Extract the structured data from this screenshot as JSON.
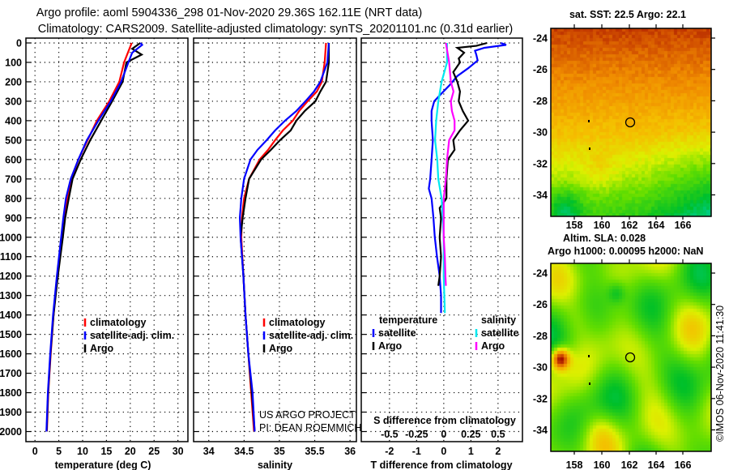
{
  "title": {
    "line1": "Argo profile: aoml 5904336_298 01-Nov-2020 29.36S 162.11E (NRT data)",
    "line2": "Climatology: CARS2009. Satellite-adjusted climatology: synTS_20201101.nc (0.31d earlier)"
  },
  "chart_data": [
    {
      "type": "line",
      "id": "temperature",
      "xlabel": "temperature (deg C)",
      "ylabel": "depth",
      "xlim": [
        -1.9,
        32.1
      ],
      "ylim": [
        -25,
        2052
      ],
      "xticks": [
        "0",
        "5",
        "10",
        "15",
        "20",
        "25",
        "30"
      ],
      "xtick_values": [
        0,
        5,
        10,
        15,
        20,
        25,
        30
      ],
      "yticks": [
        "0",
        "100",
        "200",
        "300",
        "400",
        "500",
        "600",
        "700",
        "800",
        "900",
        "1000",
        "1100",
        "1200",
        "1300",
        "1400",
        "1500",
        "1600",
        "1700",
        "1800",
        "1900",
        "2000"
      ],
      "ytick_values": [
        0,
        100,
        200,
        300,
        400,
        500,
        600,
        700,
        800,
        900,
        1000,
        1100,
        1200,
        1300,
        1400,
        1500,
        1600,
        1700,
        1800,
        1900,
        2000
      ],
      "grid": true,
      "legend": "bottom-center",
      "series": [
        {
          "name": "climatology",
          "color": "#ff0000",
          "depth": [
            0,
            100,
            200,
            300,
            400,
            500,
            600,
            700,
            800,
            900,
            1000,
            1200,
            1400,
            1600,
            1800,
            2000
          ],
          "values": [
            20.3,
            18.7,
            17.7,
            15.6,
            13.0,
            11.05,
            9.1,
            7.65,
            6.8,
            6.25,
            5.7,
            4.7,
            3.9,
            3.3,
            2.8,
            2.5
          ]
        },
        {
          "name": "Argo",
          "color": "#000000",
          "depth": [
            0,
            30,
            60,
            100,
            200,
            300,
            400,
            500,
            600,
            700,
            800,
            900,
            1000,
            1200,
            1400,
            1600,
            1800,
            2000
          ],
          "values": [
            22.1,
            20.4,
            22.4,
            19.2,
            18.4,
            16.2,
            13.9,
            11.6,
            9.6,
            7.9,
            7.1,
            6.35,
            5.85,
            4.8,
            3.9,
            3.25,
            2.75,
            2.45
          ]
        },
        {
          "name": "satellite-adj. clim.",
          "color": "#0000ff",
          "depth": [
            0,
            10,
            50,
            100,
            200,
            300,
            400,
            500,
            600,
            700,
            800,
            900,
            1000,
            1200,
            1400,
            1600,
            1800,
            2000
          ],
          "values": [
            22.1,
            22.5,
            20.4,
            19.6,
            18.1,
            15.9,
            13.3,
            10.9,
            9.1,
            7.5,
            6.5,
            5.95,
            5.5,
            4.6,
            3.8,
            3.2,
            2.7,
            2.4
          ]
        }
      ],
      "legend_order": [
        0,
        2,
        1
      ]
    },
    {
      "type": "line",
      "id": "salinity",
      "xlabel": "salinity",
      "ylabel": "depth",
      "xlim": [
        33.785,
        36.09
      ],
      "ylim": [
        -25,
        2052
      ],
      "xticks": [
        "34",
        "34.5",
        "35",
        "35.5",
        "36"
      ],
      "xtick_values": [
        34,
        34.5,
        35,
        35.5,
        36
      ],
      "grid": true,
      "legend": "bottom-center",
      "series": [
        {
          "name": "climatology",
          "color": "#ff0000",
          "depth": [
            0,
            100,
            200,
            250,
            300,
            350,
            400,
            450,
            500,
            550,
            600,
            700,
            800,
            900,
            1000,
            1200,
            1400,
            1600,
            1800,
            2000
          ],
          "values": [
            35.66,
            35.64,
            35.6,
            35.53,
            35.4,
            35.28,
            35.19,
            35.05,
            34.94,
            34.84,
            34.72,
            34.57,
            34.5,
            34.47,
            34.46,
            34.49,
            34.52,
            34.56,
            34.6,
            34.64
          ]
        },
        {
          "name": "Argo",
          "color": "#000000",
          "depth": [
            0,
            100,
            200,
            250,
            300,
            350,
            400,
            450,
            500,
            550,
            600,
            700,
            800,
            900,
            1000,
            1200,
            1400,
            1600,
            1800,
            2000
          ],
          "values": [
            35.7,
            35.7,
            35.66,
            35.58,
            35.51,
            35.36,
            35.24,
            35.16,
            35.01,
            34.88,
            34.74,
            34.57,
            34.52,
            34.48,
            34.45,
            34.49,
            34.52,
            34.56,
            34.61,
            34.65
          ]
        },
        {
          "name": "satellite-adj. clim.",
          "color": "#0000ff",
          "depth": [
            0,
            100,
            200,
            250,
            300,
            350,
            400,
            450,
            500,
            550,
            600,
            700,
            800,
            900,
            1000,
            1200,
            1400,
            1600,
            1800,
            2000
          ],
          "values": [
            35.7,
            35.68,
            35.58,
            35.49,
            35.37,
            35.24,
            35.08,
            34.94,
            34.82,
            34.69,
            34.59,
            34.5,
            34.46,
            34.44,
            34.45,
            34.49,
            34.52,
            34.56,
            34.62,
            34.65
          ]
        }
      ],
      "legend_order": [
        0,
        2,
        1
      ]
    },
    {
      "type": "line",
      "id": "difference",
      "xlabel": "T difference from climatology",
      "x2label": "S difference from climatology",
      "xlim": [
        -3.04,
        2.9
      ],
      "x2_per_x": 0.25,
      "ylim": [
        -25,
        2052
      ],
      "xticks": [
        "-2",
        "-1",
        "0",
        "1",
        "2"
      ],
      "xtick_values": [
        -2,
        -1,
        0,
        1,
        2
      ],
      "x2ticks": [
        "-0.5",
        "-0.25",
        "0",
        "0.25",
        "0.5"
      ],
      "x2tick_values": [
        -0.5,
        -0.25,
        0,
        0.25,
        0.5
      ],
      "grid": true,
      "legend": "bottom",
      "legend_headers": {
        "temperature": "temperature",
        "salinity": "salinity"
      },
      "series": [
        {
          "name": "satellite",
          "group": "temperature",
          "axis": "T",
          "color": "#0000ff",
          "depth": [
            0,
            10,
            25,
            40,
            60,
            90,
            130,
            170,
            220,
            270,
            300,
            350,
            400,
            500,
            600,
            700,
            750,
            800,
            900,
            1000,
            1100,
            1200,
            1300,
            1390
          ],
          "values": [
            2.1,
            2.3,
            1.5,
            1.15,
            1.2,
            1.25,
            0.9,
            0.5,
            0.2,
            -0.15,
            -0.35,
            -0.45,
            -0.45,
            -0.4,
            -0.45,
            -0.5,
            -0.55,
            -0.45,
            -0.38,
            -0.33,
            -0.25,
            -0.15,
            -0.1,
            -0.1
          ]
        },
        {
          "name": "Argo",
          "group": "temperature",
          "axis": "T",
          "color": "#000000",
          "depth": [
            0,
            15,
            25,
            50,
            80,
            100,
            150,
            200,
            250,
            300,
            350,
            400,
            450,
            500,
            550,
            600,
            700,
            800,
            850,
            900,
            1000,
            1100,
            1200,
            1250
          ],
          "values": [
            1.6,
            1.2,
            0.5,
            0.75,
            0.55,
            0.6,
            0.35,
            0.5,
            0.6,
            0.55,
            0.7,
            0.9,
            0.6,
            0.35,
            0.4,
            0.15,
            0.1,
            0.1,
            -0.15,
            -0.1,
            -0.15,
            -0.1,
            -0.15,
            -0.2
          ]
        },
        {
          "name": "satellite",
          "group": "salinity",
          "axis": "S",
          "color": "#00e8f0",
          "depth": [
            0,
            100,
            200,
            300,
            400,
            500,
            600,
            700,
            800,
            900,
            1000,
            1200,
            1390
          ],
          "values": [
            0.03,
            0.03,
            -0.02,
            -0.05,
            -0.07,
            -0.08,
            -0.06,
            -0.05,
            -0.02,
            -0.01,
            0,
            0,
            0.01
          ]
        },
        {
          "name": "Argo",
          "group": "salinity",
          "axis": "S",
          "color": "#ff00ff",
          "depth": [
            0,
            100,
            200,
            250,
            300,
            350,
            400,
            450,
            500,
            550,
            600,
            700,
            800,
            900,
            1000,
            1100,
            1200,
            1250
          ],
          "values": [
            0.02,
            0.05,
            0.065,
            0.09,
            0.065,
            0.075,
            0.1,
            0.1,
            0.05,
            0.04,
            0.03,
            0.02,
            0,
            0,
            0,
            0.01,
            0.015,
            0.02
          ]
        }
      ]
    }
  ],
  "credits": {
    "line1": "US ARGO PROJECT",
    "line2": "PI: DEAN ROEMMICH"
  },
  "maps": {
    "sst": {
      "title": "sat. SST: 22.5 Argo: 22.1",
      "lat_ticks": [
        "-24",
        "-26",
        "-28",
        "-30",
        "-32",
        "-34"
      ],
      "lon_ticks": [
        "158",
        "160",
        "162",
        "164",
        "166"
      ],
      "argo_position": {
        "lat": -29.36,
        "lon": 162.11
      }
    },
    "sla": {
      "title1": "Altim. SLA: 0.028",
      "title2": "Argo h1000: 0.00095 h2000: NaN",
      "lat_ticks": [
        "-24",
        "-26",
        "-28",
        "-30",
        "-32",
        "-34"
      ],
      "lon_ticks": [
        "158",
        "160",
        "162",
        "164",
        "166"
      ]
    }
  },
  "stamp": "©IMOS 06-Nov-2020 11:41:30"
}
